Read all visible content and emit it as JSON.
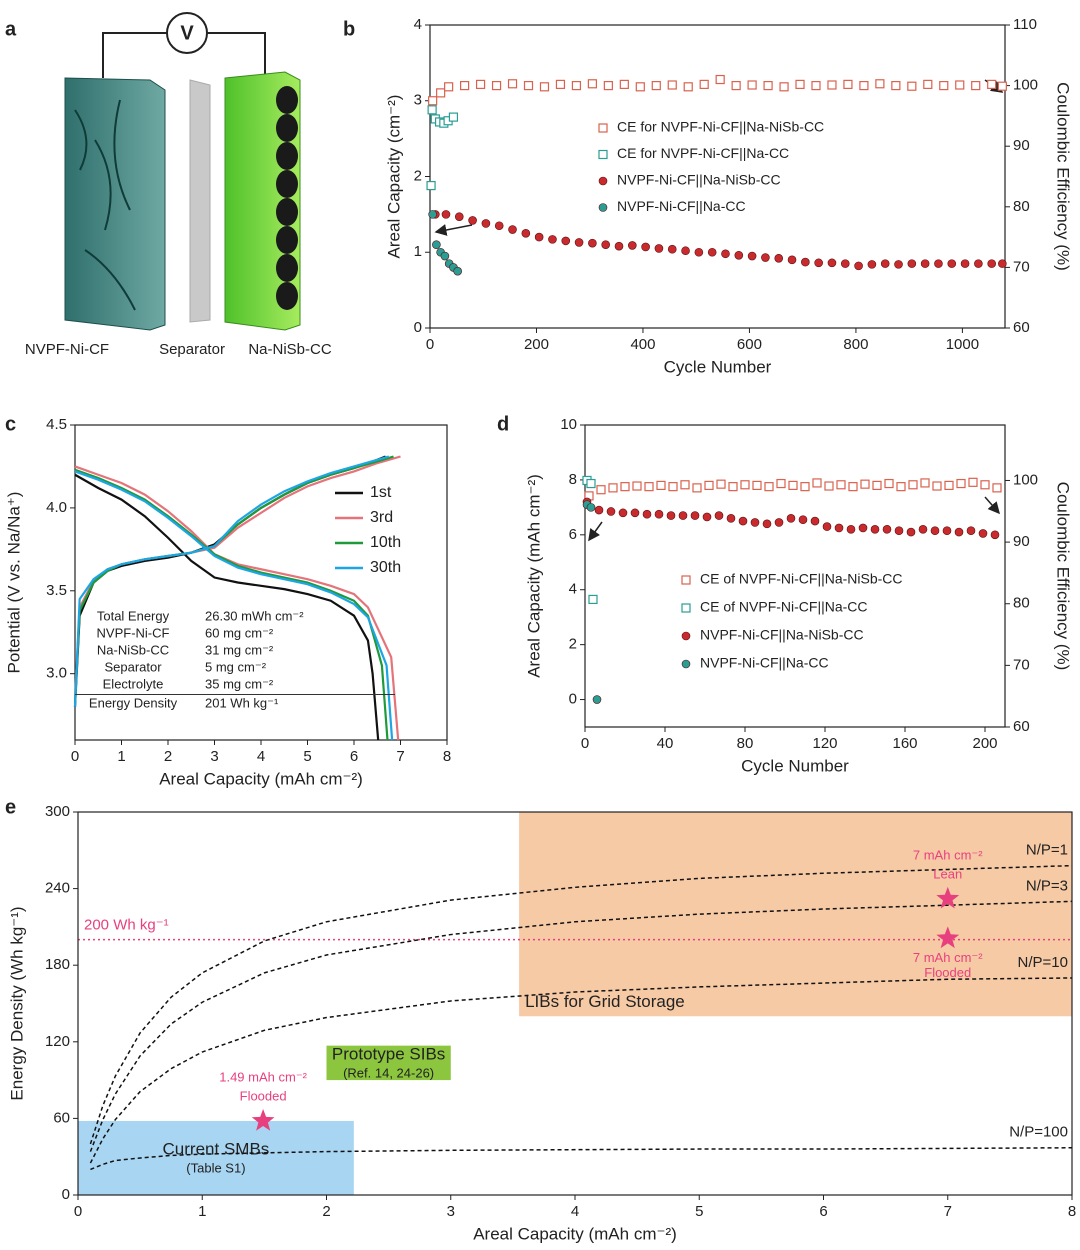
{
  "panel_a": {
    "panel": "a",
    "voltmeter": "V",
    "labels": [
      "NVPF-Ni-CF",
      "Separator",
      "Na-NiSb-CC"
    ]
  },
  "chart_data": [
    {
      "panel": "b",
      "type": "scatter",
      "xlabel": "Cycle Number",
      "ylabel": "Areal Capacity (cm⁻²)",
      "y2label": "Coulombic Efficiency (%)",
      "xlim": [
        0,
        1080
      ],
      "xticks": [
        0,
        200,
        400,
        600,
        800,
        1000
      ],
      "ylim": [
        0,
        4
      ],
      "yticks": [
        0,
        1,
        2,
        3,
        4
      ],
      "y2lim": [
        60,
        110
      ],
      "y2ticks": [
        60,
        70,
        80,
        90,
        100,
        110
      ],
      "legend": "center",
      "series": [
        {
          "name": "CE for NVPF-Ni-CF||Na-NiSb-CC",
          "color": "#d9624e",
          "marker": "square",
          "axis": "y2",
          "x": [
            5,
            20,
            35,
            65,
            95,
            125,
            155,
            185,
            215,
            245,
            275,
            305,
            335,
            365,
            395,
            425,
            455,
            485,
            515,
            545,
            575,
            605,
            635,
            665,
            695,
            725,
            755,
            785,
            815,
            845,
            875,
            905,
            935,
            965,
            995,
            1025,
            1055,
            1075
          ],
          "values": [
            97.5,
            98.8,
            99.8,
            100,
            100.2,
            100,
            100.3,
            100,
            99.8,
            100.2,
            100,
            100.3,
            100,
            100.2,
            99.8,
            100,
            100.1,
            99.8,
            100.2,
            101,
            100,
            100.1,
            100,
            99.8,
            100.2,
            100,
            100.1,
            100.2,
            100,
            100.3,
            100,
            99.9,
            100.2,
            100,
            100.1,
            100,
            100.2,
            99.9
          ]
        },
        {
          "name": "CE for NVPF-Ni-CF||Na-CC",
          "color": "#2a9d94",
          "marker": "square",
          "axis": "y2",
          "x": [
            2,
            4,
            10,
            18,
            26,
            34,
            44
          ],
          "values": [
            83.5,
            96,
            94.5,
            94,
            93.8,
            94.2,
            94.8
          ]
        },
        {
          "name": "NVPF-Ni-CF||Na-NiSb-CC",
          "color": "#c92a2e",
          "marker": "circle",
          "x": [
            10,
            30,
            55,
            80,
            105,
            130,
            155,
            180,
            205,
            230,
            255,
            280,
            305,
            330,
            355,
            380,
            405,
            430,
            455,
            480,
            505,
            530,
            555,
            580,
            605,
            630,
            655,
            680,
            705,
            730,
            755,
            780,
            805,
            830,
            855,
            880,
            905,
            930,
            955,
            980,
            1005,
            1030,
            1055,
            1075
          ],
          "values": [
            1.5,
            1.5,
            1.47,
            1.42,
            1.38,
            1.35,
            1.3,
            1.25,
            1.2,
            1.17,
            1.15,
            1.13,
            1.12,
            1.1,
            1.08,
            1.09,
            1.07,
            1.05,
            1.04,
            1.02,
            1.0,
            1.0,
            0.98,
            0.96,
            0.95,
            0.93,
            0.92,
            0.9,
            0.87,
            0.86,
            0.86,
            0.85,
            0.82,
            0.84,
            0.85,
            0.84,
            0.85,
            0.85,
            0.85,
            0.85,
            0.85,
            0.85,
            0.85,
            0.85
          ]
        },
        {
          "name": "NVPF-Ni-CF||Na-CC",
          "color": "#2a9d94",
          "marker": "circle",
          "x": [
            5,
            12,
            20,
            28,
            36,
            44,
            52
          ],
          "values": [
            1.5,
            1.1,
            1.0,
            0.95,
            0.85,
            0.8,
            0.75
          ]
        }
      ]
    },
    {
      "panel": "c",
      "type": "line",
      "xlabel": "Areal Capacity (mAh cm⁻²)",
      "ylabel": "Potential (V vs. Na/Na⁺)",
      "xlim": [
        0,
        8
      ],
      "xticks": [
        0,
        1,
        2,
        3,
        4,
        5,
        6,
        7,
        8
      ],
      "ylim": [
        2.6,
        4.5
      ],
      "yticks": [
        {
          "value": 3,
          "label": "3.0"
        },
        3.5,
        {
          "value": 4,
          "label": "4.0"
        },
        4.5
      ],
      "legend": "upper right",
      "series": [
        {
          "name": "1st",
          "color": "#111111",
          "x": [
            0,
            0.1,
            0.4,
            0.7,
            1,
            1.5,
            2,
            2.5,
            3,
            3.5,
            4,
            4.5,
            5,
            5.5,
            6,
            6.5,
            6.68,
            null,
            0,
            0.5,
            1,
            1.5,
            2,
            2.5,
            3,
            3.5,
            4,
            4.5,
            5,
            5.5,
            6,
            6.3,
            6.4,
            6.52
          ],
          "values": [
            2.8,
            3.35,
            3.55,
            3.62,
            3.65,
            3.68,
            3.7,
            3.73,
            3.78,
            3.9,
            4.0,
            4.08,
            4.15,
            4.2,
            4.24,
            4.29,
            4.31,
            null,
            4.2,
            4.12,
            4.05,
            3.95,
            3.82,
            3.68,
            3.58,
            3.55,
            3.53,
            3.51,
            3.48,
            3.44,
            3.35,
            3.2,
            3.0,
            2.6
          ]
        },
        {
          "name": "3rd",
          "color": "#e5737a",
          "x": [
            0,
            0.1,
            0.4,
            0.7,
            1,
            1.5,
            2,
            2.5,
            3,
            3.5,
            4,
            4.5,
            5,
            5.5,
            6,
            6.5,
            7,
            null,
            0,
            0.5,
            1,
            1.5,
            2,
            2.5,
            3,
            3.5,
            4,
            4.5,
            5,
            5.5,
            6,
            6.3,
            6.8,
            6.95
          ],
          "values": [
            2.85,
            3.4,
            3.56,
            3.63,
            3.66,
            3.69,
            3.71,
            3.73,
            3.76,
            3.88,
            3.97,
            4.06,
            4.13,
            4.18,
            4.22,
            4.27,
            4.31,
            null,
            4.25,
            4.2,
            4.15,
            4.08,
            3.98,
            3.86,
            3.72,
            3.66,
            3.63,
            3.6,
            3.57,
            3.53,
            3.48,
            3.4,
            3.1,
            2.6
          ]
        },
        {
          "name": "10th",
          "color": "#1f9a3b",
          "x": [
            0,
            0.1,
            0.4,
            0.7,
            1,
            1.5,
            2,
            2.5,
            3,
            3.5,
            4,
            4.5,
            5,
            5.5,
            6,
            6.5,
            6.85,
            null,
            0,
            0.5,
            1,
            1.5,
            2,
            2.5,
            3,
            3.5,
            4,
            4.5,
            5,
            5.5,
            6,
            6.3,
            6.6,
            6.72
          ],
          "values": [
            2.82,
            3.38,
            3.55,
            3.62,
            3.66,
            3.69,
            3.71,
            3.73,
            3.77,
            3.9,
            4.0,
            4.08,
            4.15,
            4.2,
            4.24,
            4.28,
            4.31,
            null,
            4.23,
            4.18,
            4.12,
            4.05,
            3.95,
            3.84,
            3.72,
            3.65,
            3.61,
            3.58,
            3.55,
            3.5,
            3.44,
            3.35,
            3.05,
            2.6
          ]
        },
        {
          "name": "30th",
          "color": "#1ea5e3",
          "x": [
            0,
            0.1,
            0.4,
            0.7,
            1,
            1.5,
            2,
            2.5,
            3,
            3.5,
            4,
            4.5,
            5,
            5.5,
            6,
            6.5,
            6.75,
            null,
            0,
            0.5,
            1,
            1.5,
            2,
            2.5,
            3,
            3.5,
            4,
            4.5,
            5,
            5.5,
            6,
            6.3,
            6.7,
            6.82
          ],
          "values": [
            2.8,
            3.45,
            3.57,
            3.63,
            3.66,
            3.69,
            3.71,
            3.73,
            3.77,
            3.92,
            4.02,
            4.1,
            4.16,
            4.21,
            4.25,
            4.29,
            4.31,
            null,
            4.22,
            4.17,
            4.11,
            4.04,
            3.94,
            3.83,
            3.71,
            3.64,
            3.6,
            3.57,
            3.54,
            3.49,
            3.42,
            3.34,
            3.05,
            2.6
          ]
        }
      ],
      "table": [
        [
          "Total Energy",
          "26.30 mWh cm⁻²"
        ],
        [
          "NVPF-Ni-CF",
          "60 mg cm⁻²"
        ],
        [
          "Na-NiSb-CC",
          "31 mg cm⁻²"
        ],
        [
          "Separator",
          "5 mg cm⁻²"
        ],
        [
          "Electrolyte",
          "35 mg cm⁻²"
        ],
        [
          "Energy Density",
          "201 Wh kg⁻¹"
        ]
      ]
    },
    {
      "panel": "d",
      "type": "scatter",
      "xlabel": "Cycle Number",
      "ylabel": "Areal Capacity  (mAh cm⁻²)",
      "y2label": "Coulombic Efficiency (%)",
      "xlim": [
        0,
        210
      ],
      "xticks": [
        0,
        40,
        80,
        120,
        160,
        200
      ],
      "ylim": [
        -1,
        10
      ],
      "yticks": [
        0,
        2,
        4,
        6,
        8,
        10
      ],
      "y2lim": [
        60,
        109
      ],
      "y2ticks": [
        60,
        70,
        80,
        90,
        100
      ],
      "legend": "center",
      "series": [
        {
          "name": "CE of NVPF-Ni-CF||Na-NiSb-CC",
          "color": "#d9624e",
          "marker": "square",
          "axis": "y2",
          "x": [
            2,
            8,
            14,
            20,
            26,
            32,
            38,
            44,
            50,
            56,
            62,
            68,
            74,
            80,
            86,
            92,
            98,
            104,
            110,
            116,
            122,
            128,
            134,
            140,
            146,
            152,
            158,
            164,
            170,
            176,
            182,
            188,
            194,
            200,
            206
          ],
          "values": [
            97.5,
            98.5,
            98.8,
            99,
            99.1,
            99,
            99.2,
            99,
            99.3,
            98.8,
            99.2,
            99.4,
            99,
            99.3,
            99.2,
            99,
            99.5,
            99.2,
            99,
            99.6,
            99.1,
            99.3,
            99,
            99.4,
            99.2,
            99.5,
            99,
            99.3,
            99.6,
            99.1,
            99.2,
            99.5,
            99.7,
            99.3,
            98.8
          ]
        },
        {
          "name": "CE of NVPF-Ni-CF||Na-CC",
          "color": "#2a9d94",
          "marker": "square",
          "axis": "y2",
          "x": [
            1,
            3,
            4
          ],
          "values": [
            100,
            99.5,
            80.7
          ]
        },
        {
          "name": "NVPF-Ni-CF||Na-NiSb-CC",
          "color": "#c92a2e",
          "marker": "circle",
          "x": [
            1,
            7,
            13,
            19,
            25,
            31,
            37,
            43,
            49,
            55,
            61,
            67,
            73,
            79,
            85,
            91,
            97,
            103,
            109,
            115,
            121,
            127,
            133,
            139,
            145,
            151,
            157,
            163,
            169,
            175,
            181,
            187,
            193,
            199,
            205
          ],
          "values": [
            7.2,
            6.9,
            6.85,
            6.8,
            6.8,
            6.75,
            6.75,
            6.7,
            6.7,
            6.7,
            6.65,
            6.7,
            6.6,
            6.5,
            6.45,
            6.4,
            6.45,
            6.6,
            6.55,
            6.5,
            6.3,
            6.25,
            6.2,
            6.25,
            6.2,
            6.2,
            6.15,
            6.1,
            6.2,
            6.15,
            6.15,
            6.1,
            6.15,
            6.05,
            6.0
          ]
        },
        {
          "name": "NVPF-Ni-CF||Na-CC",
          "color": "#2a9d94",
          "marker": "circle",
          "x": [
            1,
            3,
            6
          ],
          "values": [
            7.1,
            7.0,
            0
          ]
        }
      ]
    },
    {
      "panel": "e",
      "type": "line",
      "xlabel": "Areal Capacity (mAh cm⁻²)",
      "ylabel": "Energy Density (Wh kg⁻¹)",
      "xlim": [
        0,
        8
      ],
      "xticks": [
        0,
        1,
        2,
        3,
        4,
        5,
        6,
        7,
        8
      ],
      "ylim": [
        0,
        300
      ],
      "yticks": [
        0,
        60,
        120,
        180,
        240,
        300
      ],
      "line_style": "dashed",
      "regions": [
        {
          "label": "LIBs for Grid Storage",
          "x": [
            3.55,
            8
          ],
          "y": [
            140,
            300
          ],
          "color": "#f7caa6"
        },
        {
          "label": "Prototype SIBs",
          "sublabel": "(Ref. 14, 24-26)",
          "x": [
            2.0,
            3.0
          ],
          "y": [
            90,
            117
          ],
          "color": "#8cc63e"
        },
        {
          "label": "Current SMBs",
          "sublabel": "(Table S1)",
          "x": [
            0,
            2.22
          ],
          "y": [
            0,
            58
          ],
          "color": "#a8d5f2"
        }
      ],
      "reference_line": {
        "value": 200,
        "label": "200 Wh kg⁻¹",
        "color": "#e8407f"
      },
      "x": [
        0.1,
        0.2,
        0.3,
        0.5,
        0.75,
        1,
        1.5,
        2,
        3,
        4,
        5,
        6,
        7,
        8
      ],
      "series": [
        {
          "name": "N/P=1",
          "color": "#111111",
          "values": [
            40,
            70,
            93,
            127,
            155,
            174,
            199,
            214,
            231,
            241,
            248,
            252,
            255,
            258
          ]
        },
        {
          "name": "N/P=3",
          "color": "#111111",
          "values": [
            34,
            59,
            79,
            109,
            134,
            151,
            174,
            188,
            204,
            214,
            220,
            224,
            227,
            230
          ]
        },
        {
          "name": "N/P=10",
          "color": "#111111",
          "values": [
            25,
            44,
            59,
            81,
            99,
            112,
            129,
            139,
            152,
            159,
            163,
            166,
            169,
            170
          ]
        },
        {
          "name": "N/P=100",
          "color": "#111111",
          "values": [
            20,
            24,
            27,
            29,
            31,
            32,
            33,
            34,
            35,
            35.5,
            36,
            36,
            36.5,
            37
          ]
        }
      ],
      "point_color": "#e8407f",
      "points": [
        {
          "x": 1.49,
          "y": 58,
          "label": "1.49 mAh cm⁻²",
          "note": "Flooded"
        },
        {
          "x": 7,
          "y": 232,
          "label": "7 mAh cm⁻²",
          "note": "Lean"
        },
        {
          "x": 7,
          "y": 201,
          "label": "7 mAh cm⁻²",
          "note": "Flooded"
        }
      ]
    }
  ]
}
